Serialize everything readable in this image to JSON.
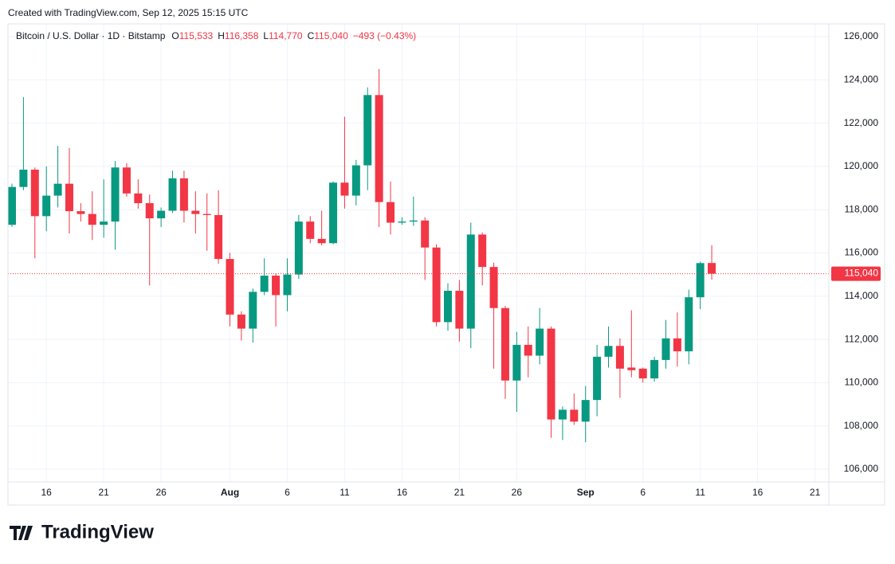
{
  "header": "Created with TradingView.com, Sep 12, 2025 15:15 UTC",
  "legend": {
    "name": "Bitcoin / U.S. Dollar · 1D · Bitstamp",
    "fields": [
      {
        "key": "O",
        "label": "115,533"
      },
      {
        "key": "H",
        "label": "116,358"
      },
      {
        "key": "L",
        "label": "114,770"
      },
      {
        "key": "C",
        "label": "115,040"
      }
    ],
    "change": "−493 (−0.43%)"
  },
  "brand": "TradingView",
  "chart_data": {
    "type": "candlestick",
    "x": [
      "2025-07-13",
      "2025-07-14",
      "2025-07-15",
      "2025-07-16",
      "2025-07-17",
      "2025-07-18",
      "2025-07-19",
      "2025-07-20",
      "2025-07-21",
      "2025-07-22",
      "2025-07-23",
      "2025-07-24",
      "2025-07-25",
      "2025-07-26",
      "2025-07-27",
      "2025-07-28",
      "2025-07-29",
      "2025-07-30",
      "2025-07-31",
      "2025-08-01",
      "2025-08-02",
      "2025-08-03",
      "2025-08-04",
      "2025-08-05",
      "2025-08-06",
      "2025-08-07",
      "2025-08-08",
      "2025-08-09",
      "2025-08-10",
      "2025-08-11",
      "2025-08-12",
      "2025-08-13",
      "2025-08-14",
      "2025-08-15",
      "2025-08-16",
      "2025-08-17",
      "2025-08-18",
      "2025-08-19",
      "2025-08-20",
      "2025-08-21",
      "2025-08-22",
      "2025-08-23",
      "2025-08-24",
      "2025-08-25",
      "2025-08-26",
      "2025-08-27",
      "2025-08-28",
      "2025-08-29",
      "2025-08-30",
      "2025-08-31",
      "2025-09-01",
      "2025-09-02",
      "2025-09-03",
      "2025-09-04",
      "2025-09-05",
      "2025-09-06",
      "2025-09-07",
      "2025-09-08",
      "2025-09-09",
      "2025-09-10",
      "2025-09-11",
      "2025-09-12"
    ],
    "open": [
      117300,
      119050,
      119850,
      117700,
      118650,
      119200,
      117930,
      117800,
      117300,
      117450,
      119950,
      118750,
      118300,
      117600,
      117950,
      119450,
      117950,
      117800,
      117750,
      115720,
      113150,
      112500,
      114200,
      114950,
      114050,
      115000,
      117450,
      116650,
      116450,
      119250,
      118650,
      120050,
      123300,
      118350,
      117400,
      117450,
      117500,
      116250,
      112800,
      114250,
      112500,
      116850,
      115350,
      113450,
      110100,
      111750,
      111250,
      112500,
      108300,
      108750,
      108200,
      109200,
      111200,
      111700,
      110700,
      110650,
      110200,
      111050,
      112050,
      111450,
      113950,
      115533
    ],
    "high": [
      119200,
      123200,
      119950,
      120000,
      120950,
      120850,
      118300,
      118850,
      119400,
      120250,
      120150,
      119400,
      118700,
      118100,
      119800,
      119800,
      118850,
      118750,
      118900,
      116000,
      113300,
      114350,
      115750,
      115050,
      115750,
      117750,
      117700,
      117950,
      119300,
      122300,
      120300,
      123650,
      124500,
      119300,
      117650,
      118600,
      117650,
      116400,
      114600,
      114750,
      117400,
      116950,
      115550,
      113550,
      112350,
      112600,
      113450,
      112600,
      108900,
      109500,
      109850,
      111750,
      112600,
      112050,
      113350,
      110700,
      111200,
      112900,
      113250,
      114300,
      115600,
      116358
    ],
    "low": [
      117200,
      118900,
      115750,
      117000,
      118100,
      116900,
      117450,
      116600,
      116700,
      116150,
      118600,
      118050,
      114500,
      117200,
      117850,
      117400,
      116900,
      116100,
      115500,
      112600,
      111950,
      111850,
      114050,
      112600,
      113300,
      114800,
      116450,
      116350,
      116400,
      118050,
      118200,
      118900,
      117200,
      116850,
      117300,
      117250,
      114750,
      112600,
      112400,
      111900,
      111600,
      114500,
      110650,
      109250,
      108650,
      110250,
      110850,
      107450,
      107350,
      108050,
      107250,
      108450,
      110700,
      109300,
      110250,
      110000,
      110050,
      110650,
      110750,
      110850,
      113400,
      114770
    ],
    "close": [
      119050,
      119850,
      117700,
      118650,
      119200,
      117930,
      117800,
      117300,
      117450,
      119950,
      118750,
      118300,
      117600,
      117950,
      119450,
      117950,
      117800,
      117750,
      115720,
      113150,
      112500,
      114200,
      114950,
      114050,
      115000,
      117450,
      116650,
      116450,
      119250,
      118650,
      120050,
      123300,
      118350,
      117400,
      117450,
      117500,
      116250,
      112800,
      114250,
      112500,
      116850,
      115350,
      113450,
      110100,
      111750,
      111250,
      112500,
      108300,
      108750,
      108200,
      109200,
      111200,
      111700,
      110650,
      110580,
      110200,
      111050,
      112050,
      111450,
      113950,
      115530,
      115040
    ],
    "up_color": "#089981",
    "down_color": "#f23645",
    "last_price_label": "115,040",
    "xlim": [
      "2025-07-13",
      "2025-09-22"
    ],
    "xticks": [
      {
        "value": "2025-07-16",
        "label": "16"
      },
      {
        "value": "2025-07-21",
        "label": "21"
      },
      {
        "value": "2025-07-26",
        "label": "26"
      },
      {
        "value": "2025-08-01",
        "label": "Aug"
      },
      {
        "value": "2025-08-06",
        "label": "6"
      },
      {
        "value": "2025-08-11",
        "label": "11"
      },
      {
        "value": "2025-08-16",
        "label": "16"
      },
      {
        "value": "2025-08-21",
        "label": "21"
      },
      {
        "value": "2025-08-26",
        "label": "26"
      },
      {
        "value": "2025-09-01",
        "label": "Sep"
      },
      {
        "value": "2025-09-06",
        "label": "6"
      },
      {
        "value": "2025-09-11",
        "label": "11"
      },
      {
        "value": "2025-09-16",
        "label": "16"
      },
      {
        "value": "2025-09-21",
        "label": "21"
      }
    ],
    "ylim": [
      105400,
      126600
    ],
    "yticks": [
      {
        "value": 106000,
        "label": "106,000"
      },
      {
        "value": 108000,
        "label": "108,000"
      },
      {
        "value": 110000,
        "label": "110,000"
      },
      {
        "value": 112000,
        "label": "112,000"
      },
      {
        "value": 114000,
        "label": "114,000"
      },
      {
        "value": 116000,
        "label": "116,000"
      },
      {
        "value": 118000,
        "label": "118,000"
      },
      {
        "value": 120000,
        "label": "120,000"
      },
      {
        "value": 122000,
        "label": "122,000"
      },
      {
        "value": 124000,
        "label": "124,000"
      },
      {
        "value": 126000,
        "label": "126,000"
      }
    ],
    "grid": true
  }
}
